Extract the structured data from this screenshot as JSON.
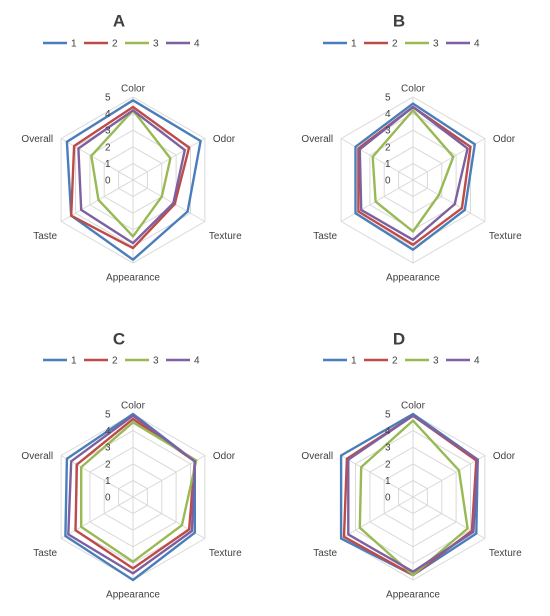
{
  "colors": {
    "series": [
      "#4a7ebb",
      "#be4b48",
      "#98b954",
      "#7d60a0"
    ],
    "grid": "#d9d9d9",
    "text": "#404040"
  },
  "chart_data": [
    {
      "type": "radar",
      "title": "A",
      "axes": [
        "Color",
        "Odor",
        "Texture",
        "Appearance",
        "Taste",
        "Overall"
      ],
      "ticks": [
        "0",
        "1",
        "2",
        "3",
        "4",
        "5"
      ],
      "rmin": 0,
      "rmax": 5,
      "legend": "top",
      "grid": true,
      "series": [
        {
          "name": "1",
          "values": [
            4.8,
            4.7,
            3.8,
            4.8,
            4.3,
            4.6
          ]
        },
        {
          "name": "2",
          "values": [
            4.4,
            3.9,
            2.9,
            4.1,
            4.3,
            4.1
          ]
        },
        {
          "name": "3",
          "values": [
            4.2,
            2.6,
            2.0,
            3.4,
            2.4,
            2.9
          ]
        },
        {
          "name": "4",
          "values": [
            4.2,
            3.6,
            2.8,
            3.8,
            3.6,
            3.8
          ]
        }
      ]
    },
    {
      "type": "radar",
      "title": "B",
      "axes": [
        "Color",
        "Odor",
        "Texture",
        "Appearance",
        "Taste",
        "Overall"
      ],
      "ticks": [
        "0",
        "1",
        "2",
        "3",
        "4",
        "5"
      ],
      "rmin": 0,
      "rmax": 5,
      "legend": "top",
      "grid": true,
      "series": [
        {
          "name": "1",
          "values": [
            4.6,
            4.3,
            3.6,
            4.2,
            4.0,
            4.0
          ]
        },
        {
          "name": "2",
          "values": [
            4.4,
            4.0,
            3.4,
            3.9,
            3.8,
            3.8
          ]
        },
        {
          "name": "3",
          "values": [
            4.2,
            2.8,
            1.8,
            3.1,
            2.6,
            2.8
          ]
        },
        {
          "name": "4",
          "values": [
            4.4,
            3.8,
            2.9,
            3.6,
            3.6,
            3.7
          ]
        }
      ]
    },
    {
      "type": "radar",
      "title": "C",
      "axes": [
        "Color",
        "Odor",
        "Texture",
        "Appearance",
        "Taste",
        "Overall"
      ],
      "ticks": [
        "0",
        "1",
        "2",
        "3",
        "4",
        "5"
      ],
      "rmin": 0,
      "rmax": 5,
      "legend": "top",
      "grid": true,
      "series": [
        {
          "name": "1",
          "values": [
            5.0,
            4.3,
            4.3,
            5.0,
            4.7,
            4.6
          ]
        },
        {
          "name": "2",
          "values": [
            4.7,
            4.3,
            3.9,
            4.3,
            4.0,
            3.9
          ]
        },
        {
          "name": "3",
          "values": [
            4.5,
            4.4,
            3.4,
            3.9,
            3.6,
            3.6
          ]
        },
        {
          "name": "4",
          "values": [
            4.9,
            4.3,
            4.1,
            4.6,
            4.5,
            4.3
          ]
        }
      ]
    },
    {
      "type": "radar",
      "title": "D",
      "axes": [
        "Color",
        "Odor",
        "Texture",
        "Appearance",
        "Taste",
        "Overall"
      ],
      "ticks": [
        "0",
        "1",
        "2",
        "3",
        "4",
        "5"
      ],
      "rmin": 0,
      "rmax": 5,
      "legend": "top",
      "grid": true,
      "series": [
        {
          "name": "1",
          "values": [
            5.0,
            4.5,
            4.4,
            4.7,
            5.0,
            5.0
          ]
        },
        {
          "name": "2",
          "values": [
            4.9,
            4.4,
            4.1,
            4.7,
            4.8,
            4.6
          ]
        },
        {
          "name": "3",
          "values": [
            4.6,
            3.2,
            3.8,
            4.7,
            3.7,
            3.6
          ]
        },
        {
          "name": "4",
          "values": [
            4.9,
            4.5,
            4.2,
            4.5,
            4.5,
            4.5
          ]
        }
      ]
    }
  ]
}
